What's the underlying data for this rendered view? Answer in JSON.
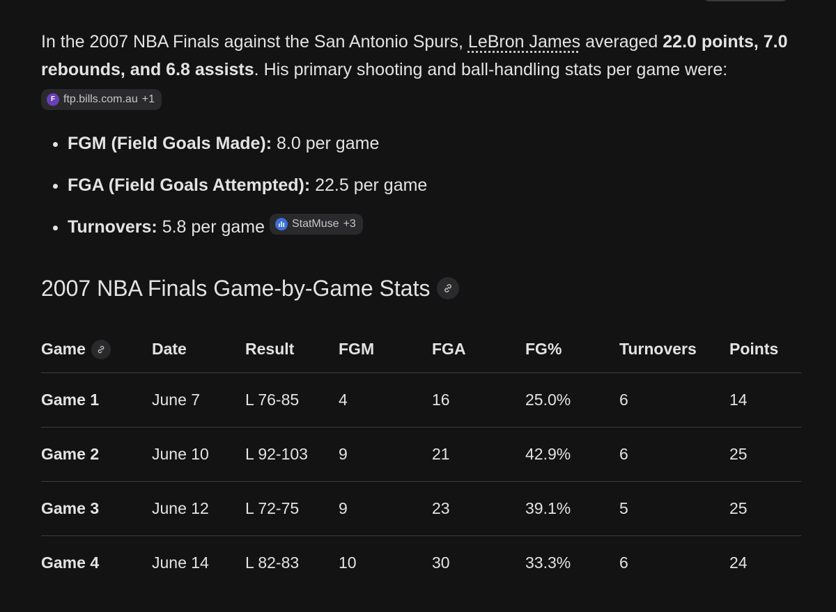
{
  "intro": {
    "text_before": "In the 2007 NBA Finals against the San Antonio Spurs,",
    "link": "LeBron James",
    "text_middle": "averaged",
    "bold": "22.0 points, 7.0 rebounds, and 6.8 assists",
    "text_after": ". His primary shooting and ball-handling stats per game were:",
    "source": {
      "icon": "F",
      "label": "ftp.bills.com.au",
      "more": "+1"
    }
  },
  "bullets": [
    {
      "label": "FGM (Field Goals Made):",
      "text": "8.0 per game"
    },
    {
      "label": "FGA (Field Goals Attempted):",
      "text": "22.5 per game"
    },
    {
      "label": "Turnovers:",
      "text": "5.8 per game",
      "source": {
        "label": "StatMuse",
        "more": "+3"
      }
    }
  ],
  "section_title": "2007 NBA Finals Game-by-Game Stats",
  "table": {
    "columns": [
      "Game",
      "Date",
      "Result",
      "FGM",
      "FGA",
      "FG%",
      "Turnovers",
      "Points"
    ],
    "rows": [
      [
        "Game 1",
        "June 7",
        "L 76-85",
        "4",
        "16",
        "25.0%",
        "6",
        "14"
      ],
      [
        "Game 2",
        "June 10",
        "L 92-103",
        "9",
        "21",
        "42.9%",
        "6",
        "25"
      ],
      [
        "Game 3",
        "June 12",
        "L 72-75",
        "9",
        "23",
        "39.1%",
        "5",
        "25"
      ],
      [
        "Game 4",
        "June 14",
        "L 82-83",
        "10",
        "30",
        "33.3%",
        "6",
        "24"
      ]
    ]
  }
}
